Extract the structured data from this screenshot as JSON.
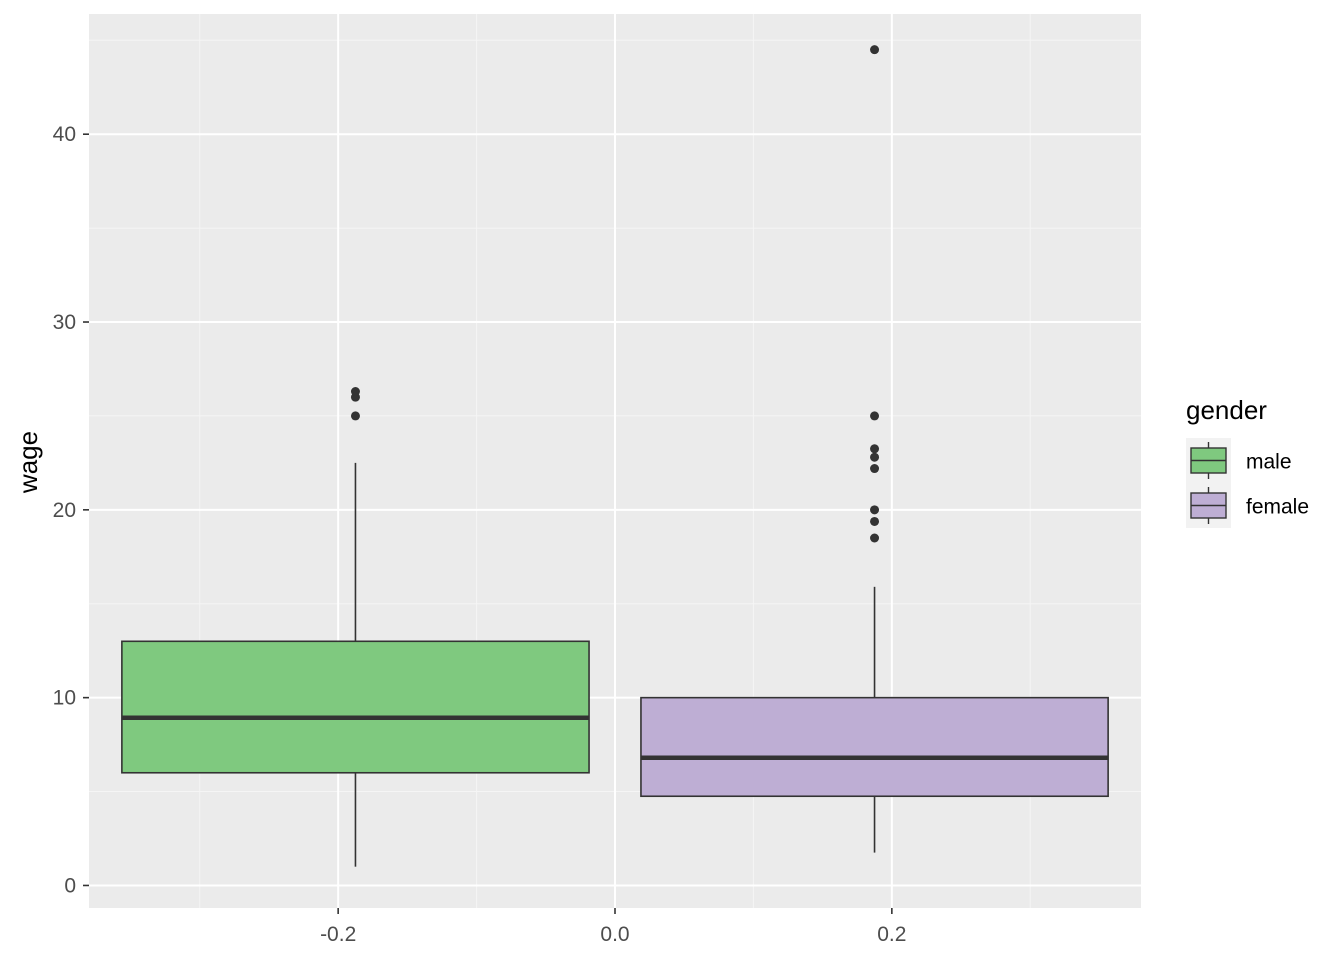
{
  "chart_data": {
    "type": "boxplot",
    "xlabel": "",
    "ylabel": "wage",
    "xlim": [
      -0.38,
      0.38
    ],
    "ylim": [
      -1.2,
      46.4
    ],
    "x_ticks": [
      -0.2,
      0.0,
      0.2
    ],
    "x_tick_labels": [
      "-0.2",
      "0.0",
      "0.2"
    ],
    "y_ticks": [
      0,
      10,
      20,
      30,
      40
    ],
    "y_tick_labels": [
      "0",
      "10",
      "20",
      "30",
      "40"
    ],
    "grid": true,
    "legend": {
      "title": "gender",
      "position": "right"
    },
    "series": [
      {
        "name": "male",
        "color": "#7fc97f",
        "x_center": -0.1875,
        "box_width": 0.3375,
        "min": 1.0,
        "q1": 6.0,
        "median": 8.93,
        "q3": 13.0,
        "max": 22.5,
        "outliers": [
          25.0,
          26.0,
          26.3
        ]
      },
      {
        "name": "female",
        "color": "#beaed4",
        "x_center": 0.1875,
        "box_width": 0.3375,
        "min": 1.75,
        "q1": 4.75,
        "median": 6.8,
        "q3": 10.0,
        "max": 15.9,
        "outliers": [
          18.5,
          19.38,
          20.0,
          22.2,
          22.8,
          23.25,
          25.0,
          44.5
        ]
      }
    ]
  },
  "colors": {
    "panel_background": "#ebebeb",
    "grid_major": "#ffffff",
    "grid_minor": "#f5f5f5",
    "box_outline": "#333333",
    "outlier": "#333333",
    "legend_key_background": "#f2f2f2"
  }
}
